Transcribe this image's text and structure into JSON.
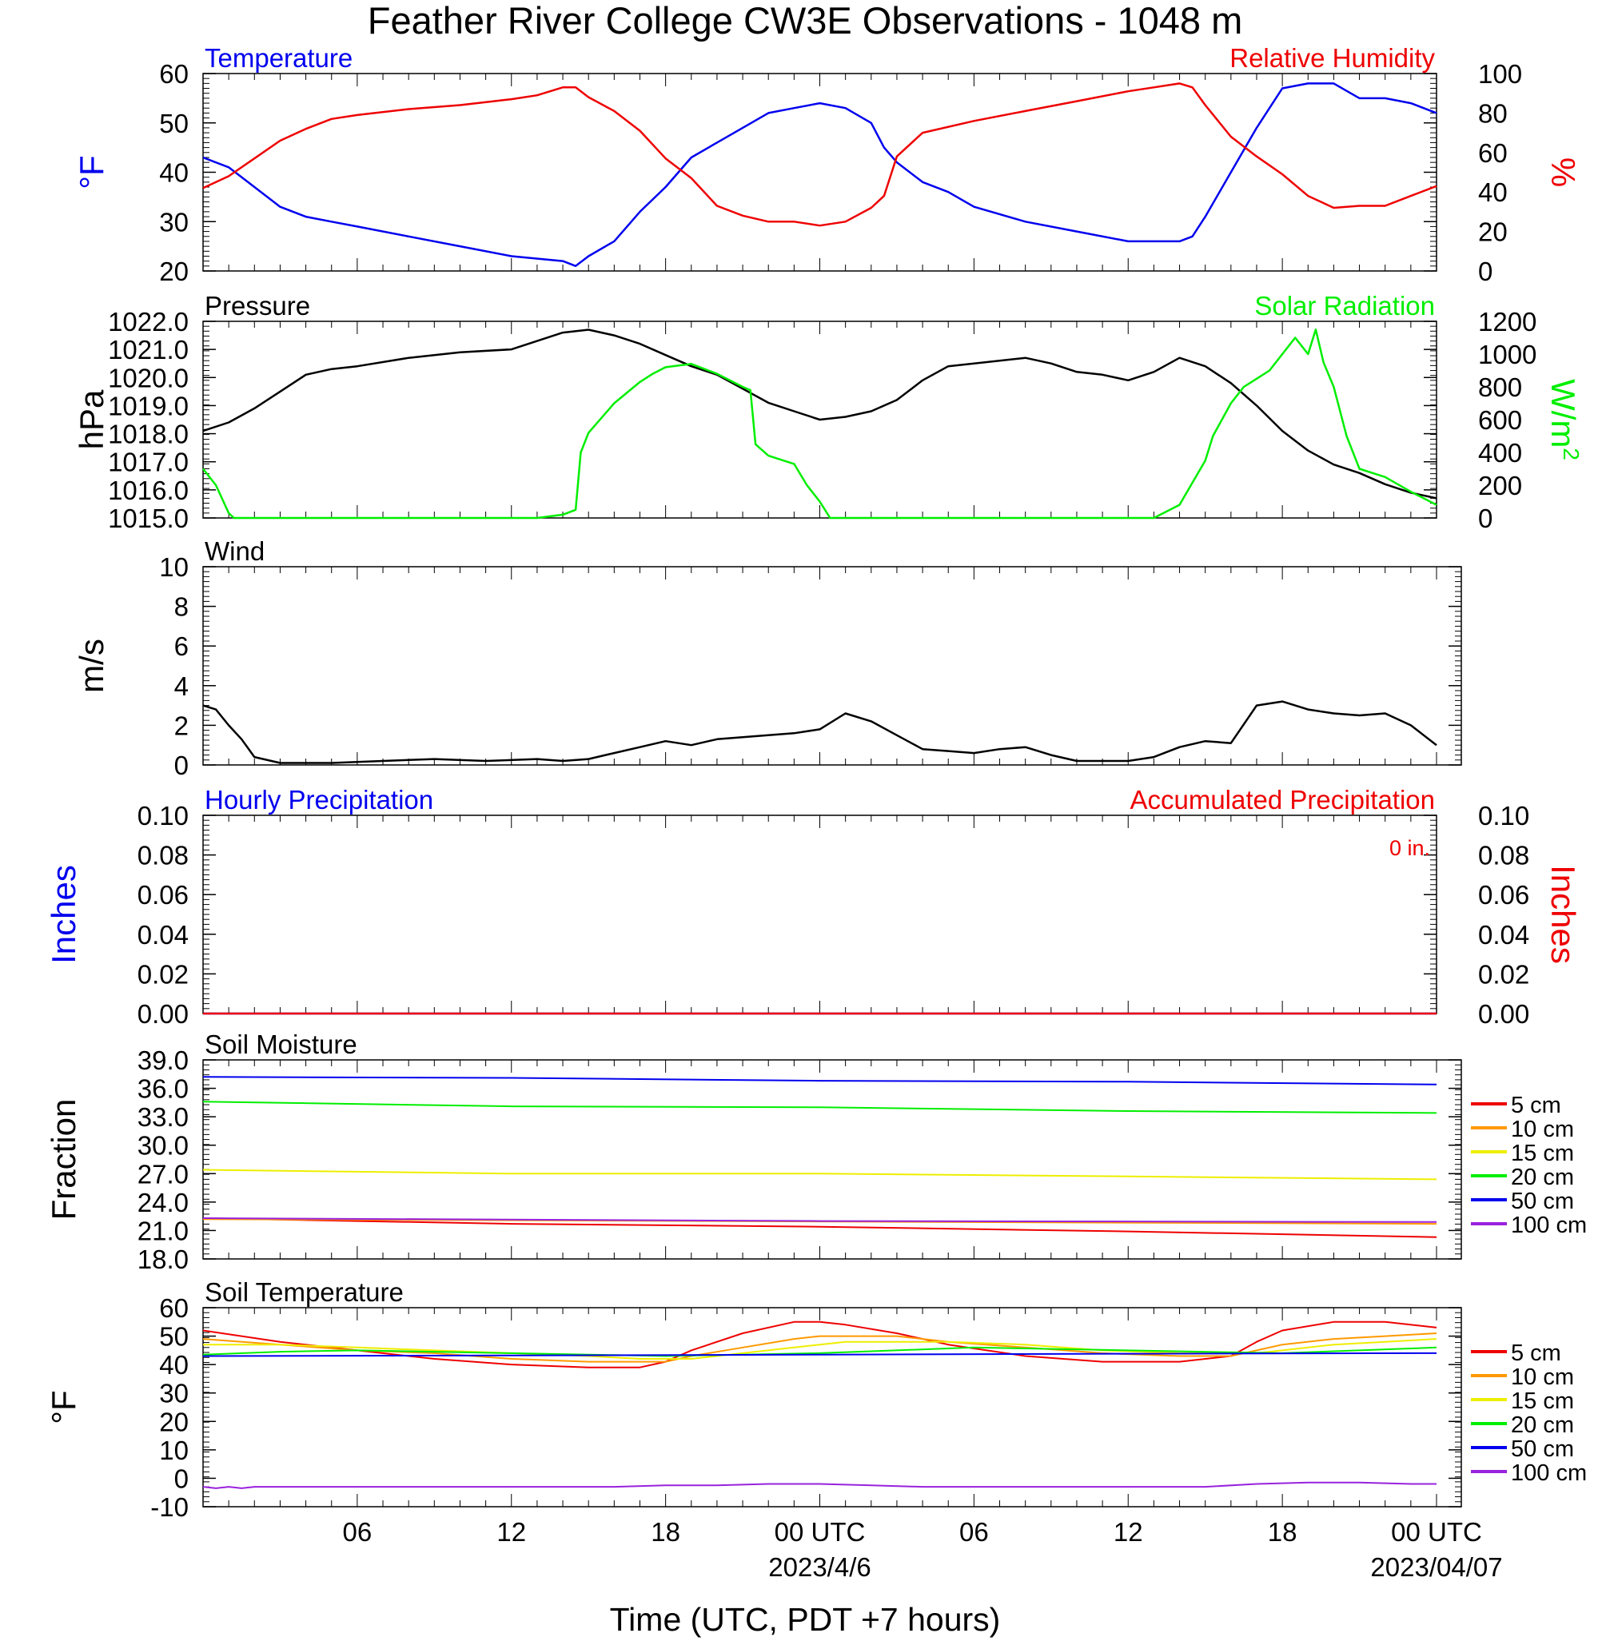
{
  "title": "Feather River College CW3E Observations - 1048 m",
  "xlabel": "Time (UTC, PDT +7 hours)",
  "x_ticks": [
    "06",
    "12",
    "18",
    "00 UTC",
    "06",
    "12",
    "18",
    "00 UTC"
  ],
  "x_dates": [
    "2023/4/6",
    "2023/04/07"
  ],
  "colors": {
    "blue": "#0000ee",
    "red": "#ee0000",
    "green": "#00ee00",
    "black": "#000000",
    "orange": "#ff9900",
    "yellow": "#eeee00",
    "purple": "#9922dd"
  },
  "chart_data": [
    {
      "type": "line",
      "left_title": "Temperature",
      "right_title": "Relative Humidity",
      "left_units": "°F",
      "right_units": "%",
      "left_ticks": [
        "20",
        "30",
        "40",
        "50",
        "60"
      ],
      "right_ticks": [
        "0",
        "20",
        "40",
        "60",
        "80",
        "100"
      ],
      "ylim_left": [
        20,
        60
      ],
      "ylim_right": [
        0,
        100
      ],
      "x_hours": [
        0,
        14.5,
        18,
        22,
        24,
        26,
        27,
        34,
        38.5,
        40,
        42,
        46,
        48
      ],
      "series": [
        {
          "name": "Temperature",
          "axis": "left",
          "color": "#0000ee",
          "x": [
            0,
            1,
            2,
            3,
            4,
            5,
            6,
            8,
            10,
            12,
            14,
            14.5,
            15,
            16,
            17,
            18,
            19,
            20,
            21,
            22,
            23,
            24,
            25,
            26,
            26.5,
            27,
            28,
            29,
            30,
            32,
            34,
            36,
            37,
            38,
            38.5,
            39,
            40,
            41,
            42,
            43,
            44,
            45,
            46,
            47,
            48
          ],
          "y": [
            43,
            41,
            37,
            33,
            31,
            30,
            29,
            27,
            25,
            23,
            22,
            21,
            23,
            26,
            32,
            37,
            43,
            46,
            49,
            52,
            53,
            54,
            53,
            50,
            45,
            42,
            38,
            36,
            33,
            30,
            28,
            26,
            26,
            26,
            27,
            31,
            40,
            49,
            57,
            58,
            58,
            55,
            55,
            54,
            52
          ]
        },
        {
          "name": "Relative Humidity",
          "axis": "right",
          "color": "#ee0000",
          "x": [
            0,
            1,
            2,
            3,
            4,
            5,
            6,
            8,
            10,
            12,
            13,
            14,
            14.5,
            15,
            16,
            17,
            18,
            19,
            20,
            21,
            22,
            23,
            24,
            25,
            26,
            26.5,
            27,
            28,
            30,
            32,
            34,
            36,
            37,
            38,
            38.5,
            39,
            40,
            41,
            42,
            43,
            44,
            45,
            46,
            47,
            48
          ],
          "y": [
            42,
            48,
            57,
            66,
            72,
            77,
            79,
            82,
            84,
            87,
            89,
            93,
            93,
            88,
            81,
            71,
            57,
            47,
            33,
            28,
            25,
            25,
            23,
            25,
            32,
            38,
            58,
            70,
            76,
            81,
            86,
            91,
            93,
            95,
            93,
            84,
            68,
            58,
            49,
            38,
            32,
            33,
            33,
            38,
            43
          ]
        }
      ]
    },
    {
      "type": "line",
      "left_title": "Pressure",
      "right_title": "Solar Radiation",
      "left_units": "hPa",
      "right_units": "W/m",
      "right_units_sup": "2",
      "left_ticks": [
        "1015.0",
        "1016.0",
        "1017.0",
        "1018.0",
        "1019.0",
        "1020.0",
        "1021.0",
        "1022.0"
      ],
      "right_ticks": [
        "0",
        "200",
        "400",
        "600",
        "800",
        "1000",
        "1200"
      ],
      "ylim_left": [
        1015,
        1022
      ],
      "ylim_right": [
        0,
        1200
      ],
      "series": [
        {
          "name": "Pressure",
          "axis": "left",
          "color": "#000000",
          "x": [
            0,
            1,
            2,
            3,
            4,
            5,
            6,
            8,
            10,
            12,
            13,
            14,
            15,
            16,
            17,
            18,
            19,
            20,
            21,
            22,
            23,
            24,
            25,
            26,
            27,
            28,
            29,
            30,
            32,
            33,
            34,
            35,
            36,
            37,
            38,
            39,
            40,
            41,
            42,
            43,
            44,
            45,
            46,
            47,
            48
          ],
          "y": [
            1018.1,
            1018.4,
            1018.9,
            1019.5,
            1020.1,
            1020.3,
            1020.4,
            1020.7,
            1020.9,
            1021.0,
            1021.3,
            1021.6,
            1021.7,
            1021.5,
            1021.2,
            1020.8,
            1020.4,
            1020.1,
            1019.6,
            1019.1,
            1018.8,
            1018.5,
            1018.6,
            1018.8,
            1019.2,
            1019.9,
            1020.4,
            1020.5,
            1020.7,
            1020.5,
            1020.2,
            1020.1,
            1019.9,
            1020.2,
            1020.7,
            1020.4,
            1019.8,
            1019.0,
            1018.1,
            1017.4,
            1016.9,
            1016.6,
            1016.2,
            1015.9,
            1015.7
          ]
        },
        {
          "name": "Solar Radiation",
          "axis": "right",
          "color": "#00ee00",
          "x": [
            0,
            0.5,
            1,
            1.2,
            13,
            14,
            14.5,
            14.7,
            15,
            16,
            17,
            17.5,
            18,
            19,
            20,
            21,
            21.3,
            21.5,
            22,
            23,
            23.5,
            24,
            24.4,
            25,
            37,
            38,
            39,
            39.3,
            40,
            40.5,
            41,
            41.5,
            42,
            42.5,
            43,
            43.3,
            43.6,
            44,
            44.5,
            45,
            46,
            47,
            48
          ],
          "y": [
            300,
            200,
            30,
            0,
            0,
            20,
            50,
            400,
            520,
            700,
            830,
            880,
            920,
            940,
            880,
            800,
            780,
            450,
            380,
            330,
            200,
            100,
            0,
            0,
            0,
            80,
            350,
            500,
            700,
            800,
            850,
            900,
            1000,
            1100,
            1000,
            1150,
            950,
            800,
            500,
            300,
            250,
            160,
            80
          ]
        }
      ]
    },
    {
      "type": "line",
      "left_title": "Wind",
      "left_units": "m/s",
      "left_ticks": [
        "0",
        "2",
        "4",
        "6",
        "8",
        "10"
      ],
      "ylim_left": [
        0,
        10
      ],
      "series": [
        {
          "name": "Wind",
          "axis": "left",
          "color": "#000000",
          "x": [
            0,
            0.5,
            1,
            1.5,
            2,
            3,
            5,
            7,
            9,
            11,
            13,
            14,
            15,
            16,
            17,
            18,
            19,
            20,
            21,
            22,
            23,
            24,
            25,
            26,
            27,
            28,
            29,
            30,
            31,
            32,
            33,
            34,
            35,
            36,
            37,
            38,
            39,
            40,
            41,
            42,
            43,
            44,
            45,
            46,
            47,
            48
          ],
          "y": [
            3.0,
            2.8,
            2.0,
            1.3,
            0.4,
            0.1,
            0.1,
            0.2,
            0.3,
            0.2,
            0.3,
            0.2,
            0.3,
            0.6,
            0.9,
            1.2,
            1.0,
            1.3,
            1.4,
            1.5,
            1.6,
            1.8,
            2.6,
            2.2,
            1.5,
            0.8,
            0.7,
            0.6,
            0.8,
            0.9,
            0.5,
            0.2,
            0.2,
            0.2,
            0.4,
            0.9,
            1.2,
            1.1,
            3.0,
            3.2,
            2.8,
            2.6,
            2.5,
            2.6,
            2.0,
            1.0
          ]
        }
      ]
    },
    {
      "type": "line",
      "left_title": "Hourly Precipitation",
      "right_title": "Accumulated Precipitation",
      "annotation": "0 in.",
      "left_units": "Inches",
      "right_units": "Inches",
      "left_ticks": [
        "0.00",
        "0.02",
        "0.04",
        "0.06",
        "0.08",
        "0.10"
      ],
      "right_ticks": [
        "0.00",
        "0.02",
        "0.04",
        "0.06",
        "0.08",
        "0.10"
      ],
      "ylim_left": [
        0,
        0.1
      ],
      "ylim_right": [
        0,
        0.1
      ],
      "series": [
        {
          "name": "Hourly Precipitation",
          "axis": "left",
          "color": "#0000ee",
          "x": [
            0,
            48
          ],
          "y": [
            0,
            0
          ]
        },
        {
          "name": "Accumulated Precipitation",
          "axis": "right",
          "color": "#ee0000",
          "x": [
            0,
            48
          ],
          "y": [
            0,
            0
          ]
        }
      ]
    },
    {
      "type": "line",
      "left_title": "Soil Moisture",
      "left_units": "Fraction",
      "left_ticks": [
        "18.0",
        "21.0",
        "24.0",
        "27.0",
        "30.0",
        "33.0",
        "36.0",
        "39.0"
      ],
      "ylim_left": [
        18,
        39
      ],
      "legend": [
        "5 cm",
        "10 cm",
        "15 cm",
        "20 cm",
        "50 cm",
        "100 cm"
      ],
      "series": [
        {
          "name": "5 cm",
          "axis": "left",
          "color": "#ee0000",
          "x": [
            0,
            12,
            24,
            36,
            48
          ],
          "y": [
            22.3,
            21.7,
            21.4,
            20.9,
            20.3
          ]
        },
        {
          "name": "10 cm",
          "axis": "left",
          "color": "#ff9900",
          "x": [
            0,
            48
          ],
          "y": [
            22.2,
            21.7
          ]
        },
        {
          "name": "15 cm",
          "axis": "left",
          "color": "#eeee00",
          "x": [
            0,
            12,
            24,
            36,
            48
          ],
          "y": [
            27.4,
            27.0,
            27.0,
            26.7,
            26.4
          ]
        },
        {
          "name": "20 cm",
          "axis": "left",
          "color": "#00ee00",
          "x": [
            0,
            12,
            24,
            36,
            48
          ],
          "y": [
            34.6,
            34.1,
            34.0,
            33.6,
            33.4
          ]
        },
        {
          "name": "50 cm",
          "axis": "left",
          "color": "#0000ee",
          "x": [
            0,
            12,
            24,
            36,
            48
          ],
          "y": [
            37.2,
            37.1,
            36.8,
            36.7,
            36.4
          ]
        },
        {
          "name": "100 cm",
          "axis": "left",
          "color": "#9922dd",
          "x": [
            0,
            24,
            48
          ],
          "y": [
            22.3,
            22.0,
            21.9
          ]
        }
      ]
    },
    {
      "type": "line",
      "left_title": "Soil Temperature",
      "left_units": "°F",
      "left_ticks": [
        "-10",
        "0",
        "10",
        "20",
        "30",
        "40",
        "50",
        "60"
      ],
      "ylim_left": [
        -10,
        60
      ],
      "legend": [
        "5 cm",
        "10 cm",
        "15 cm",
        "20 cm",
        "50 cm",
        "100 cm"
      ],
      "series": [
        {
          "name": "5 cm",
          "axis": "left",
          "color": "#ee0000",
          "x": [
            0,
            3,
            6,
            9,
            12,
            15,
            17,
            18,
            19,
            21,
            23,
            24,
            25,
            27,
            29,
            32,
            35,
            38,
            40,
            41,
            42,
            44,
            46,
            48
          ],
          "y": [
            52,
            48,
            45,
            42,
            40,
            39,
            39,
            41,
            45,
            51,
            55,
            55,
            54,
            51,
            47,
            43,
            41,
            41,
            43,
            48,
            52,
            55,
            55,
            53
          ]
        },
        {
          "name": "10 cm",
          "axis": "left",
          "color": "#ff9900",
          "x": [
            0,
            3,
            6,
            9,
            12,
            15,
            17,
            18,
            19,
            21,
            23,
            24,
            25,
            27,
            29,
            32,
            35,
            38,
            40,
            41,
            42,
            44,
            46,
            48
          ],
          "y": [
            49,
            47,
            45,
            44,
            42,
            41,
            41,
            41,
            43,
            46,
            49,
            50,
            50,
            50,
            48,
            46,
            44,
            43,
            43,
            45,
            47,
            49,
            50,
            51
          ]
        },
        {
          "name": "15 cm",
          "axis": "left",
          "color": "#eeee00",
          "x": [
            0,
            3,
            6,
            9,
            12,
            15,
            17,
            18,
            19,
            21,
            23,
            24,
            25,
            27,
            29,
            32,
            35,
            38,
            40,
            41,
            42,
            44,
            46,
            48
          ],
          "y": [
            47,
            47,
            46,
            45,
            44,
            43,
            42,
            42,
            42,
            44,
            46,
            47,
            48,
            48,
            48,
            47,
            45,
            44,
            44,
            44,
            45,
            47,
            48,
            49
          ]
        },
        {
          "name": "20 cm",
          "axis": "left",
          "color": "#00ee00",
          "x": [
            0,
            3,
            6,
            12,
            18,
            24,
            30,
            36,
            42,
            48
          ],
          "y": [
            43.5,
            44.5,
            45,
            44,
            43,
            44,
            46,
            45,
            44,
            46
          ]
        },
        {
          "name": "50 cm",
          "axis": "left",
          "color": "#0000ee",
          "x": [
            0,
            12,
            24,
            36,
            48
          ],
          "y": [
            43,
            43.2,
            43.5,
            43.8,
            44
          ]
        },
        {
          "name": "100 cm",
          "axis": "left",
          "color": "#9922dd",
          "x": [
            0,
            0.5,
            1,
            1.5,
            2,
            2.5,
            16,
            18,
            20,
            22,
            24,
            26,
            28,
            39,
            41,
            43,
            45,
            47,
            48
          ],
          "y": [
            -3,
            -3.5,
            -3,
            -3.5,
            -3,
            -3,
            -3,
            -2.5,
            -2.5,
            -2,
            -2,
            -2.5,
            -3,
            -3,
            -2,
            -1.5,
            -1.5,
            -2,
            -2
          ]
        }
      ]
    }
  ]
}
